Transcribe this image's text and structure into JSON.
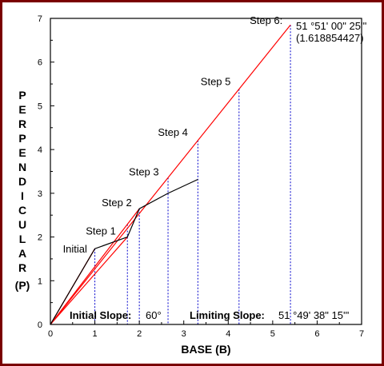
{
  "chart_data": {
    "type": "line",
    "xlabel": "BASE (B)",
    "ylabel": "PERPENDICULAR (P)",
    "xlim": [
      0,
      7
    ],
    "ylim": [
      0,
      7
    ],
    "x_ticks": [
      "0",
      "1",
      "2",
      "3",
      "4",
      "5",
      "6",
      "7"
    ],
    "y_ticks": [
      "0",
      "1",
      "2",
      "3",
      "4",
      "5",
      "6",
      "7"
    ],
    "grid": false,
    "colors": {
      "red": "#ff0000",
      "black": "#000000",
      "dashed": "#0000cc"
    },
    "series": [
      {
        "color": "#000000",
        "x": [
          0,
          1,
          1.732,
          2,
          2.646,
          3.317
        ],
        "y": [
          0,
          1.732,
          2,
          2.646,
          3,
          3.317
        ]
      },
      {
        "color": "#ff0000",
        "x": [
          0,
          1
        ],
        "y": [
          0,
          1.732
        ]
      },
      {
        "color": "#ff0000",
        "x": [
          0,
          1.732
        ],
        "y": [
          0,
          2
        ]
      },
      {
        "color": "#ff0000",
        "x": [
          0,
          2
        ],
        "y": [
          0,
          2.646
        ]
      },
      {
        "color": "#ff0000",
        "x": [
          0,
          5.4
        ],
        "y": [
          0,
          6.85
        ]
      }
    ],
    "dashed_x": [
      1,
      1.732,
      2,
      2.646,
      3.317,
      4.243,
      5.4
    ],
    "annotations": {
      "initial": {
        "text": "Initial",
        "x": 1,
        "y": 1.732
      },
      "step1": {
        "text": "Step 1",
        "x": 1.732,
        "y": 2
      },
      "step2": {
        "text": "Step 2",
        "x": 2,
        "y": 2.646
      },
      "step3": {
        "text": "Step 3",
        "x": 2.646,
        "y": 3.317
      },
      "step4": {
        "text": "Step 4",
        "x": 3.317,
        "y": 4.2
      },
      "step5": {
        "text": "Step 5",
        "x": 4.243,
        "y": 5.38
      },
      "step6": {
        "text": "Step 6:",
        "x": 5.4,
        "y": 6.85
      },
      "step6_value": "51 °51' 00\" 25'''",
      "step6_ratio": "(1.618854427)",
      "initial_slope_label": "Initial Slope:",
      "initial_slope_value": "60°",
      "limiting_slope_label": "Limiting Slope:",
      "limiting_slope_value": "51 °49' 38\" 15'''"
    }
  }
}
